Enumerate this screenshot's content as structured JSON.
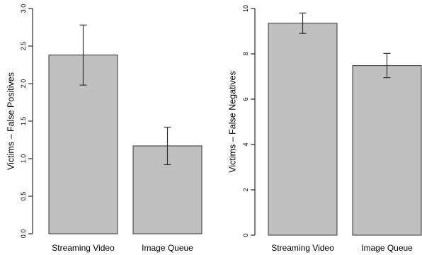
{
  "chart_data": [
    {
      "type": "bar",
      "title": "",
      "ylabel": "Victims – False Positives",
      "xlabel": "",
      "categories": [
        "Streaming Video",
        "Image Queue"
      ],
      "values": [
        2.38,
        1.17
      ],
      "error_low": [
        1.98,
        0.92
      ],
      "error_high": [
        2.78,
        1.42
      ],
      "ylim": [
        0,
        3.0
      ],
      "yticks": [
        "0.0",
        "0.5",
        "1.0",
        "1.5",
        "2.0",
        "2.5",
        "3.0"
      ],
      "bar_color": "#c0c0c0",
      "grid": false,
      "legend": "none"
    },
    {
      "type": "bar",
      "title": "",
      "ylabel": "Victims – False Negatives",
      "xlabel": "",
      "categories": [
        "Streaming Video",
        "Image Queue"
      ],
      "values": [
        9.35,
        7.48
      ],
      "error_low": [
        8.9,
        6.95
      ],
      "error_high": [
        9.8,
        8.02
      ],
      "ylim": [
        0,
        10
      ],
      "yticks": [
        "0",
        "2",
        "4",
        "6",
        "8",
        "10"
      ],
      "bar_color": "#c0c0c0",
      "grid": false,
      "legend": "none"
    }
  ]
}
